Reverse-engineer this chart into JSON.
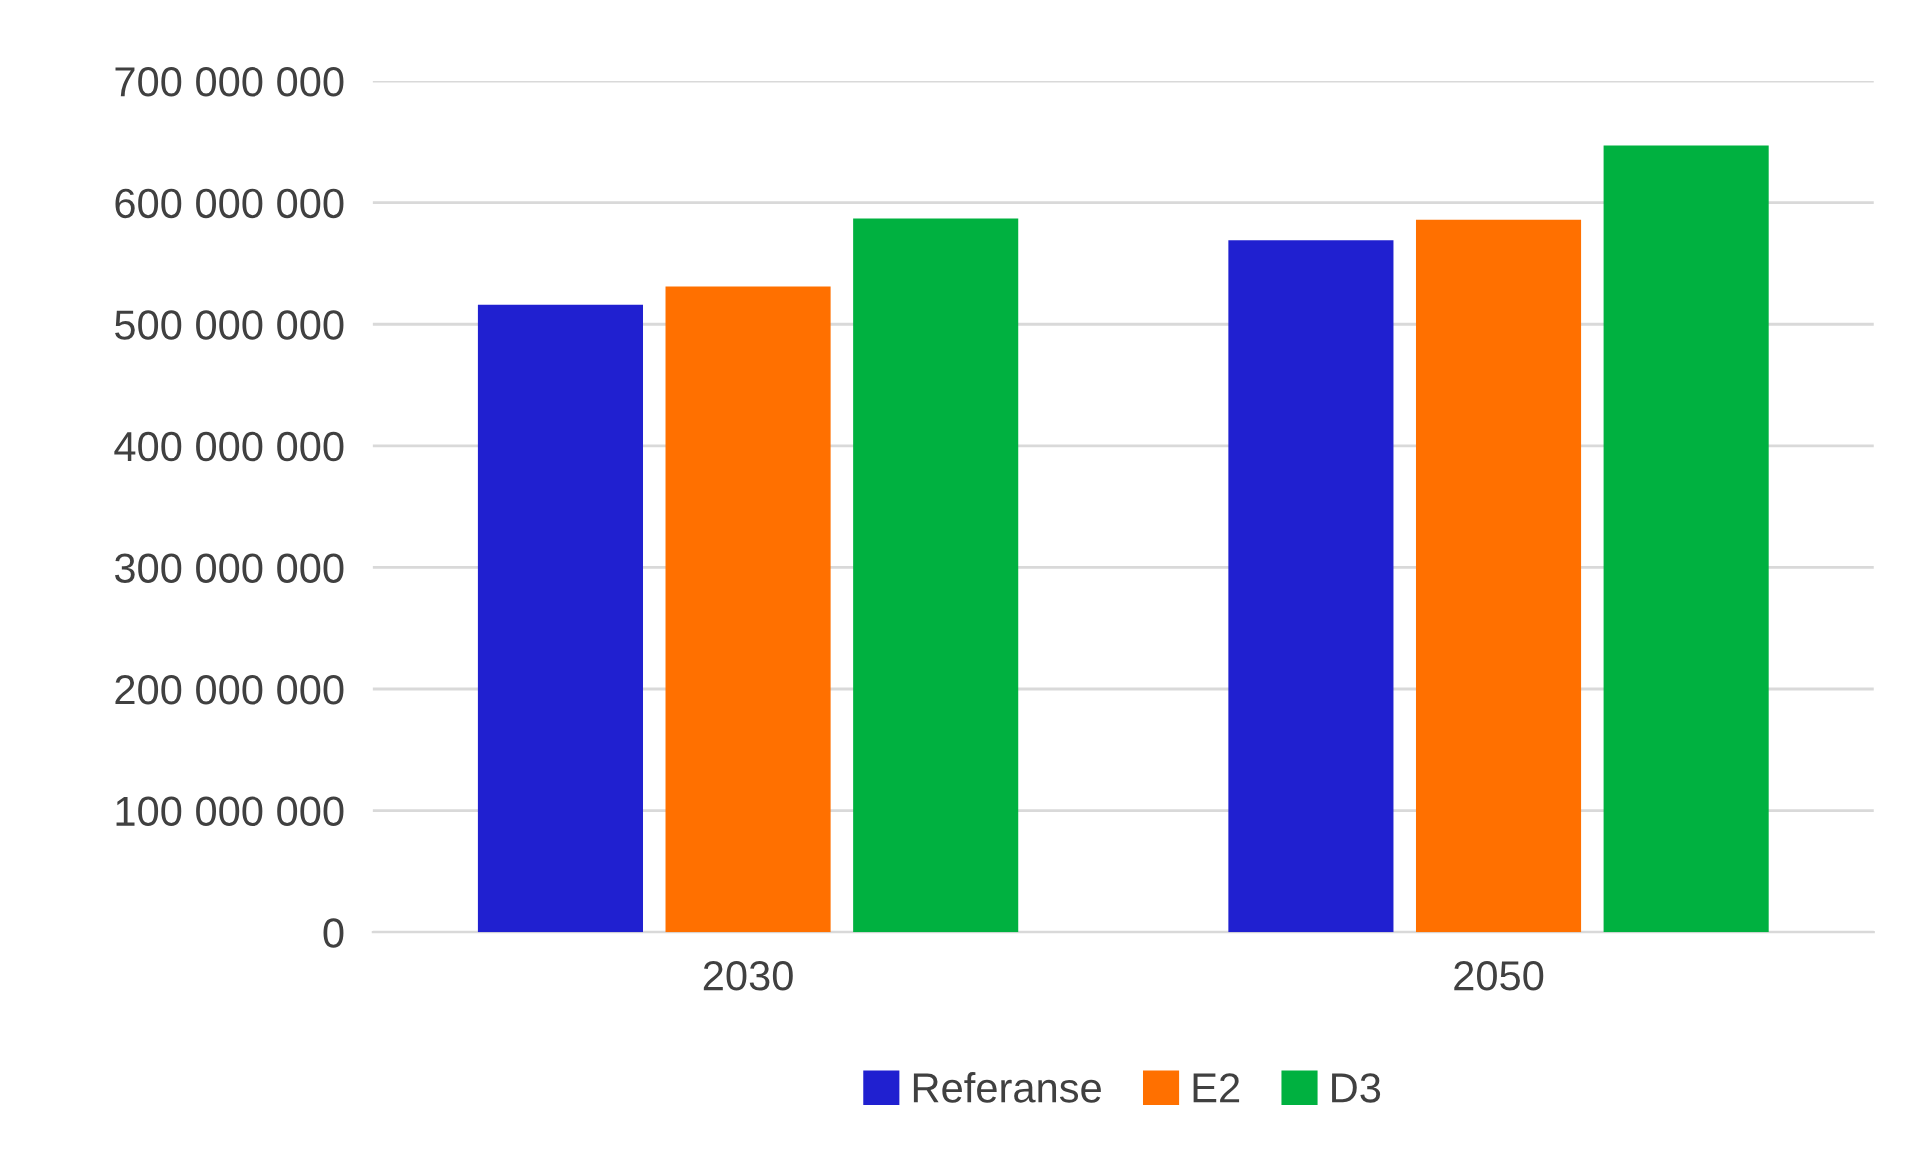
{
  "chart_data": {
    "type": "bar",
    "categories": [
      "2030",
      "2050"
    ],
    "series": [
      {
        "name": "Referanse",
        "color": "#2020d0",
        "values": [
          516000000,
          569000000
        ]
      },
      {
        "name": "E2",
        "color": "#ff7000",
        "values": [
          531000000,
          586000000
        ]
      },
      {
        "name": "D3",
        "color": "#00b140",
        "values": [
          587000000,
          647000000
        ]
      }
    ],
    "ylim": [
      0,
      700000000
    ],
    "yticks": [
      {
        "value": 0,
        "label": "0"
      },
      {
        "value": 100000000,
        "label": "100 000 000"
      },
      {
        "value": 200000000,
        "label": "200 000 000"
      },
      {
        "value": 300000000,
        "label": "300 000 000"
      },
      {
        "value": 400000000,
        "label": "400 000 000"
      },
      {
        "value": 500000000,
        "label": "500 000 000"
      },
      {
        "value": 600000000,
        "label": "600 000 000"
      },
      {
        "value": 700000000,
        "label": "700 000 000"
      }
    ],
    "grid": "y",
    "legend": "bottom"
  }
}
